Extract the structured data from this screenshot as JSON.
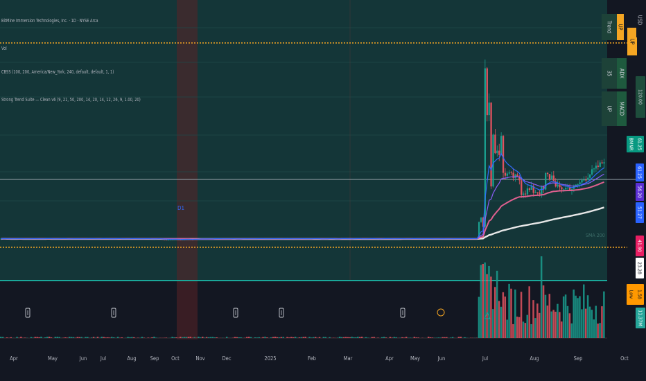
{
  "legend": {
    "line1": "BitMine Immersion Technologies, Inc. · 1D · NYSE Arca",
    "line2": "Vol",
    "line3": "CBSS (100, 200, America/New_York, 240, default, default, 1, 1)",
    "line4": "Strong Trend Suite — Clean v6 (9, 21, 50, 200, 14, 20, 14, 12, 26, 9, 1.00, 20)"
  },
  "table": {
    "trend_label": "Trend",
    "trend_value": "UP",
    "trend_side": "UP",
    "adx_label": "ADX",
    "adx_value": "35",
    "macd_label": "MACD",
    "macd_value": "UP"
  },
  "price_tags": [
    {
      "text": "BMNR",
      "bg": "#089981",
      "fg": "#ffffff"
    },
    {
      "text": "61.25",
      "bg": "#089981",
      "fg": "#ffffff"
    },
    {
      "text": "120.00",
      "bg": "#1e4d3c",
      "fg": "#d1d4dc"
    },
    {
      "text": "61.25",
      "bg": "#2962ff",
      "fg": "#ffffff"
    },
    {
      "text": "56.20",
      "bg": "#5b2fd3",
      "fg": "#ffffff"
    },
    {
      "text": "51.27",
      "bg": "#2962ff",
      "fg": "#ffffff"
    },
    {
      "text": "41.90",
      "bg": "#e91e63",
      "fg": "#ffffff"
    },
    {
      "text": "23.28",
      "bg": "#ffffff",
      "fg": "#131722"
    },
    {
      "text": "Low",
      "bg": "#ff9800",
      "fg": "#131722"
    },
    {
      "text": "1.58",
      "bg": "#ff9800",
      "fg": "#131722"
    },
    {
      "text": "11.37M",
      "bg": "#26a69a",
      "fg": "#ffffff"
    }
  ],
  "ma_annotation": "SMA 200",
  "marker_label": "D1",
  "colors": {
    "background": "#131722",
    "band": "#143638",
    "gold": "#f5a623",
    "teal": "#1aa89a",
    "up": "#1a9e8e",
    "down": "#e0525f",
    "ema_fast": "#2f6bff",
    "ema_mid": "#8a5cf6",
    "ema_slow": "#e06090",
    "sma200": "#e8e8e8"
  },
  "x_axis_labels": [
    "Apr",
    "May",
    "Jun",
    "Jul",
    "Aug",
    "Sep",
    "Oct",
    "Nov",
    "Dec",
    "2025",
    "Feb",
    "Mar",
    "Apr",
    "May",
    "Jun",
    "Jul",
    "Aug",
    "Sep",
    "Oct"
  ],
  "chart_data": {
    "type": "candlestick",
    "symbol": "BMNR",
    "exchange": "NYSE Arca",
    "interval": "1D",
    "x": [
      "2024-04",
      "2024-05",
      "2024-06",
      "2024-07",
      "2024-08",
      "2024-09",
      "2024-10",
      "2024-11",
      "2024-12",
      "2025-01",
      "2025-02",
      "2025-03",
      "2025-04",
      "2025-05",
      "2025-06",
      "2025-07",
      "2025-08",
      "2025-09",
      "2025-10"
    ],
    "close_approx": [
      1.6,
      1.5,
      1.4,
      1.3,
      1.2,
      1.1,
      1.0,
      1.6,
      1.8,
      1.7,
      1.5,
      1.5,
      1.4,
      1.6,
      2.5,
      35,
      55,
      45,
      61.25
    ],
    "spike_high": 135,
    "last_price": 61.25,
    "levels": {
      "upper": 120.0,
      "lower": 1.58
    },
    "moving_averages": [
      {
        "name": "EMA 9",
        "color": "#2f6bff",
        "last": 61.25
      },
      {
        "name": "EMA 21",
        "color": "#8a5cf6",
        "last": 56.2
      },
      {
        "name": "EMA 50",
        "color": "#e06090",
        "last": 41.9
      },
      {
        "name": "SMA 200",
        "color": "#e8e8e8",
        "last": 23.28
      }
    ],
    "volume_last": "11.37M"
  }
}
